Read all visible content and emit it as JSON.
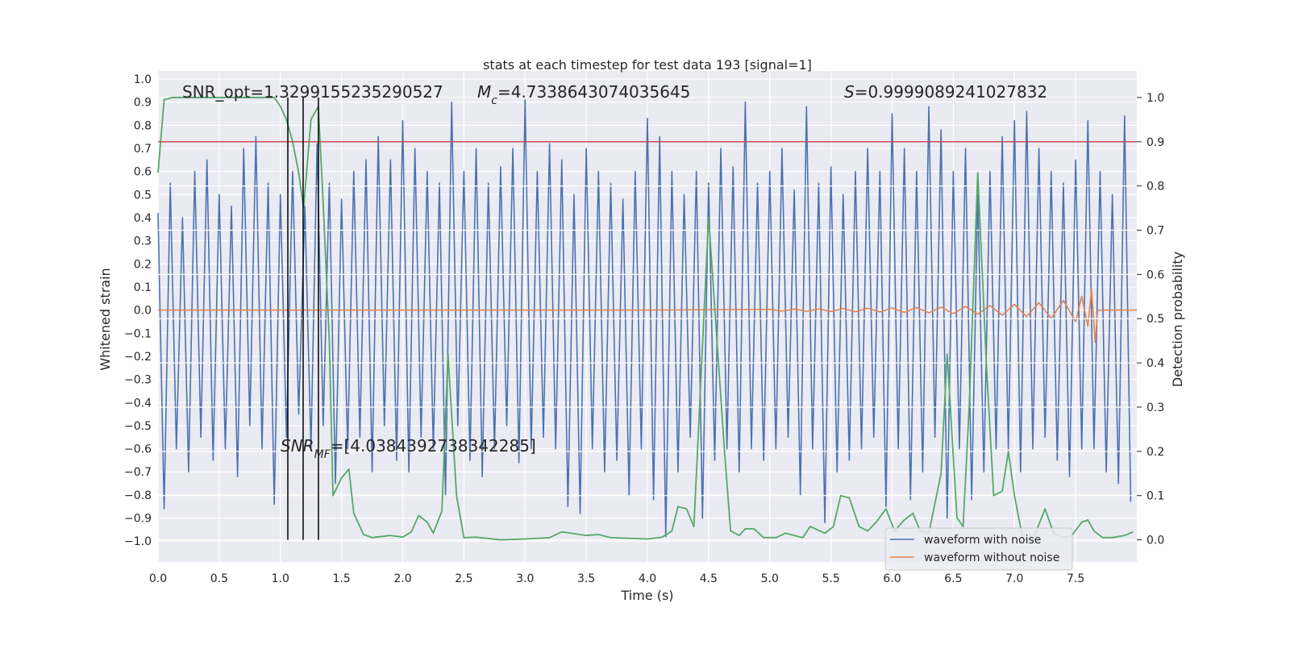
{
  "chart_data": {
    "type": "line",
    "title": "stats at each timestep for test data 193 [signal=1]",
    "xlabel": "Time (s)",
    "ylabel": "Whitened strain",
    "y2label": "Detection probability",
    "xlim": [
      0,
      8
    ],
    "ylim": [
      -1.09,
      1.035
    ],
    "y2lim": [
      -0.05,
      1.06
    ],
    "xticks": [
      {
        "value": 0,
        "label": "0.0"
      },
      {
        "value": 0.5,
        "label": "0.5"
      },
      {
        "value": 1,
        "label": "1.0"
      },
      {
        "value": 1.5,
        "label": "1.5"
      },
      {
        "value": 2,
        "label": "2.0"
      },
      {
        "value": 2.5,
        "label": "2.5"
      },
      {
        "value": 3,
        "label": "3.0"
      },
      {
        "value": 3.5,
        "label": "3.5"
      },
      {
        "value": 4,
        "label": "4.0"
      },
      {
        "value": 4.5,
        "label": "4.5"
      },
      {
        "value": 5,
        "label": "5.0"
      },
      {
        "value": 5.5,
        "label": "5.5"
      },
      {
        "value": 6,
        "label": "6.0"
      },
      {
        "value": 6.5,
        "label": "6.5"
      },
      {
        "value": 7,
        "label": "7.0"
      },
      {
        "value": 7.5,
        "label": "7.5"
      }
    ],
    "yticks": [
      {
        "value": -1,
        "label": "−1.0"
      },
      {
        "value": -0.9,
        "label": "−0.9"
      },
      {
        "value": -0.8,
        "label": "−0.8"
      },
      {
        "value": -0.7,
        "label": "−0.7"
      },
      {
        "value": -0.6,
        "label": "−0.6"
      },
      {
        "value": -0.5,
        "label": "−0.5"
      },
      {
        "value": -0.4,
        "label": "−0.4"
      },
      {
        "value": -0.3,
        "label": "−0.3"
      },
      {
        "value": -0.2,
        "label": "−0.2"
      },
      {
        "value": -0.1,
        "label": "−0.1"
      },
      {
        "value": 0,
        "label": "0.0"
      },
      {
        "value": 0.1,
        "label": "0.1"
      },
      {
        "value": 0.2,
        "label": "0.2"
      },
      {
        "value": 0.3,
        "label": "0.3"
      },
      {
        "value": 0.4,
        "label": "0.4"
      },
      {
        "value": 0.5,
        "label": "0.5"
      },
      {
        "value": 0.6,
        "label": "0.6"
      },
      {
        "value": 0.7,
        "label": "0.7"
      },
      {
        "value": 0.8,
        "label": "0.8"
      },
      {
        "value": 0.9,
        "label": "0.9"
      },
      {
        "value": 1,
        "label": "1.0"
      }
    ],
    "y2ticks": [
      {
        "value": 0,
        "label": "0.0"
      },
      {
        "value": 0.1,
        "label": "0.1"
      },
      {
        "value": 0.2,
        "label": "0.2"
      },
      {
        "value": 0.3,
        "label": "0.3"
      },
      {
        "value": 0.4,
        "label": "0.4"
      },
      {
        "value": 0.5,
        "label": "0.5"
      },
      {
        "value": 0.6,
        "label": "0.6"
      },
      {
        "value": 0.7,
        "label": "0.7"
      },
      {
        "value": 0.8,
        "label": "0.8"
      },
      {
        "value": 0.9,
        "label": "0.9"
      },
      {
        "value": 1,
        "label": "1.0"
      }
    ],
    "grid": true,
    "legend": "lower right",
    "series": [
      {
        "name": "waveform with noise",
        "color": "#4c72b0",
        "x": [
          0,
          0.05,
          0.1,
          0.15,
          0.2,
          0.25,
          0.3,
          0.35,
          0.4,
          0.45,
          0.5,
          0.55,
          0.6,
          0.65,
          0.7,
          0.75,
          0.8,
          0.85,
          0.9,
          0.95,
          1,
          1.05,
          1.1,
          1.15,
          1.2,
          1.25,
          1.3,
          1.35,
          1.4,
          1.45,
          1.5,
          1.55,
          1.6,
          1.65,
          1.7,
          1.75,
          1.8,
          1.85,
          1.9,
          1.95,
          2,
          2.05,
          2.1,
          2.15,
          2.2,
          2.25,
          2.3,
          2.35,
          2.4,
          2.45,
          2.5,
          2.55,
          2.6,
          2.65,
          2.7,
          2.75,
          2.8,
          2.85,
          2.9,
          2.95,
          3,
          3.05,
          3.1,
          3.15,
          3.2,
          3.25,
          3.3,
          3.35,
          3.4,
          3.45,
          3.5,
          3.55,
          3.6,
          3.65,
          3.7,
          3.75,
          3.8,
          3.85,
          3.9,
          3.95,
          4,
          4.05,
          4.1,
          4.15,
          4.2,
          4.25,
          4.3,
          4.35,
          4.4,
          4.45,
          4.5,
          4.55,
          4.6,
          4.65,
          4.7,
          4.75,
          4.8,
          4.85,
          4.9,
          4.95,
          5,
          5.05,
          5.1,
          5.15,
          5.2,
          5.25,
          5.3,
          5.35,
          5.4,
          5.45,
          5.5,
          5.55,
          5.6,
          5.65,
          5.7,
          5.75,
          5.8,
          5.85,
          5.9,
          5.95,
          6,
          6.05,
          6.1,
          6.15,
          6.2,
          6.25,
          6.3,
          6.35,
          6.4,
          6.45,
          6.5,
          6.55,
          6.6,
          6.65,
          6.7,
          6.75,
          6.8,
          6.85,
          6.9,
          6.95,
          7,
          7.05,
          7.1,
          7.15,
          7.2,
          7.25,
          7.3,
          7.35,
          7.4,
          7.45,
          7.5,
          7.55,
          7.6,
          7.65,
          7.7,
          7.75,
          7.8,
          7.85,
          7.9,
          7.95
        ],
        "values": [
          0.42,
          -0.86,
          0.55,
          -0.6,
          0.4,
          -0.7,
          0.6,
          -0.55,
          0.65,
          -0.65,
          0.5,
          -0.6,
          0.45,
          -0.72,
          0.7,
          -0.5,
          0.75,
          -0.6,
          0.55,
          -0.84,
          0.5,
          -0.55,
          0.6,
          -0.45,
          0.45,
          -0.6,
          0.72,
          -0.5,
          0.55,
          -0.75,
          0.48,
          -0.6,
          0.6,
          -0.55,
          0.65,
          -0.7,
          0.75,
          -0.5,
          0.65,
          -0.65,
          0.82,
          -0.7,
          0.7,
          -0.55,
          0.6,
          -0.6,
          0.55,
          -0.8,
          0.9,
          -0.5,
          0.6,
          -0.65,
          0.7,
          -0.72,
          0.55,
          -0.6,
          0.62,
          -0.5,
          0.7,
          -0.66,
          0.91,
          -0.6,
          0.6,
          -0.55,
          0.72,
          -0.6,
          0.65,
          -0.85,
          0.5,
          -0.88,
          0.7,
          -0.6,
          0.6,
          -0.7,
          0.55,
          -0.65,
          0.48,
          -0.8,
          0.6,
          -0.6,
          0.83,
          -0.82,
          0.75,
          -0.98,
          0.6,
          -0.7,
          0.5,
          -0.55,
          0.6,
          -0.9,
          0.55,
          -0.65,
          0.7,
          -0.6,
          0.62,
          -0.7,
          0.9,
          -0.6,
          0.55,
          -0.65,
          0.6,
          -0.6,
          0.7,
          -0.55,
          0.52,
          -0.8,
          0.88,
          -0.6,
          0.55,
          -0.92,
          0.62,
          -0.7,
          0.5,
          -0.65,
          0.6,
          -0.6,
          0.7,
          -0.55,
          0.6,
          -0.85,
          0.85,
          -0.6,
          0.7,
          -0.82,
          0.6,
          -0.7,
          0.88,
          -0.55,
          0.78,
          -0.9,
          0.6,
          -0.6,
          0.7,
          -0.82,
          0.5,
          -0.7,
          0.6,
          -0.6,
          0.75,
          -0.6,
          0.82,
          -0.7,
          0.86,
          -0.6,
          0.7,
          -0.55,
          0.6,
          -0.65,
          0.55,
          -0.72,
          0.65,
          -0.6,
          0.82,
          -0.6,
          0.6,
          -0.7,
          0.5,
          -0.75,
          0.84,
          -0.83
        ]
      },
      {
        "name": "waveform without noise",
        "color": "#dd8452",
        "x": [
          0,
          4,
          5,
          5.1,
          5.2,
          5.3,
          5.4,
          5.5,
          5.6,
          5.7,
          5.8,
          5.9,
          6,
          6.1,
          6.2,
          6.3,
          6.4,
          6.5,
          6.6,
          6.7,
          6.8,
          6.9,
          7,
          7.1,
          7.2,
          7.3,
          7.4,
          7.5,
          7.55,
          7.6,
          7.63,
          7.66,
          7.68,
          8
        ],
        "values": [
          0,
          0,
          0.003,
          -0.004,
          0.004,
          -0.005,
          0.005,
          -0.006,
          0.006,
          -0.007,
          0.008,
          -0.008,
          0.009,
          -0.01,
          0.011,
          -0.012,
          0.013,
          -0.015,
          0.016,
          -0.018,
          0.02,
          -0.022,
          0.025,
          -0.028,
          0.032,
          -0.036,
          0.042,
          -0.05,
          0.06,
          -0.07,
          0.09,
          -0.14,
          0,
          0
        ]
      },
      {
        "color": "#55a868",
        "axis": "y2",
        "x": [
          0,
          0.05,
          0.12,
          0.95,
          1,
          1.05,
          1.1,
          1.15,
          1.19,
          1.25,
          1.31,
          1.35,
          1.4,
          1.43,
          1.5,
          1.56,
          1.6,
          1.68,
          1.75,
          1.9,
          2,
          2.07,
          2.13,
          2.2,
          2.25,
          2.32,
          2.37,
          2.44,
          2.5,
          2.6,
          2.8,
          3,
          3.2,
          3.3,
          3.4,
          3.5,
          3.6,
          3.7,
          4,
          4.12,
          4.2,
          4.25,
          4.32,
          4.38,
          4.5,
          4.63,
          4.68,
          4.75,
          4.8,
          4.87,
          4.95,
          5.05,
          5.13,
          5.2,
          5.27,
          5.33,
          5.45,
          5.52,
          5.58,
          5.65,
          5.73,
          5.8,
          5.87,
          5.95,
          6.02,
          6.1,
          6.17,
          6.23,
          6.3,
          6.4,
          6.45,
          6.53,
          6.58,
          6.63,
          6.7,
          6.77,
          6.83,
          6.9,
          6.95,
          7,
          7.07,
          7.15,
          7.25,
          7.32,
          7.4,
          7.47,
          7.55,
          7.6,
          7.65,
          7.72,
          7.8,
          7.9,
          7.97
        ],
        "values": [
          0.83,
          0.995,
          1,
          1,
          0.98,
          0.95,
          0.9,
          0.83,
          0.75,
          0.95,
          0.98,
          0.76,
          0.45,
          0.1,
          0.14,
          0.16,
          0.06,
          0.012,
          0.005,
          0.01,
          0.006,
          0.018,
          0.055,
          0.04,
          0.015,
          0.065,
          0.42,
          0.1,
          0.005,
          0.006,
          0,
          0.002,
          0.005,
          0.018,
          0.014,
          0.01,
          0.012,
          0.005,
          0.002,
          0.006,
          0.02,
          0.075,
          0.07,
          0.03,
          0.73,
          0.2,
          0.02,
          0.01,
          0.025,
          0.025,
          0.005,
          0.005,
          0.015,
          0.01,
          0.005,
          0.03,
          0.015,
          0.03,
          0.1,
          0.095,
          0.03,
          0.02,
          0.04,
          0.07,
          0.02,
          0.045,
          0.06,
          0.02,
          0.015,
          0.15,
          0.42,
          0.05,
          0.03,
          0.3,
          0.83,
          0.4,
          0.1,
          0.11,
          0.2,
          0.1,
          0,
          0,
          0.07,
          0.015,
          0.005,
          0.01,
          0.04,
          0.045,
          0.02,
          0.005,
          0.005,
          0.01,
          0.018
        ]
      }
    ],
    "hlines": [
      {
        "value": 0.9,
        "axis": "y2",
        "color": "#c44e52"
      }
    ],
    "vlines": {
      "x": [
        1.061,
        1.186,
        1.311
      ],
      "ymin": 0,
      "ymax": 1,
      "axis": "y2",
      "color": "#000000"
    },
    "annotations": [
      {
        "text": "SNR_opt=1.3299155235290527"
      },
      {
        "symbol": "M",
        "subscript": "c",
        "text": "=4.7338643074035645"
      },
      {
        "symbol": "S",
        "text": "=0.9999089241027832"
      },
      {
        "symbol": "SNR",
        "subscript": "MF",
        "text": "=[4.0384392738342285]"
      }
    ]
  }
}
